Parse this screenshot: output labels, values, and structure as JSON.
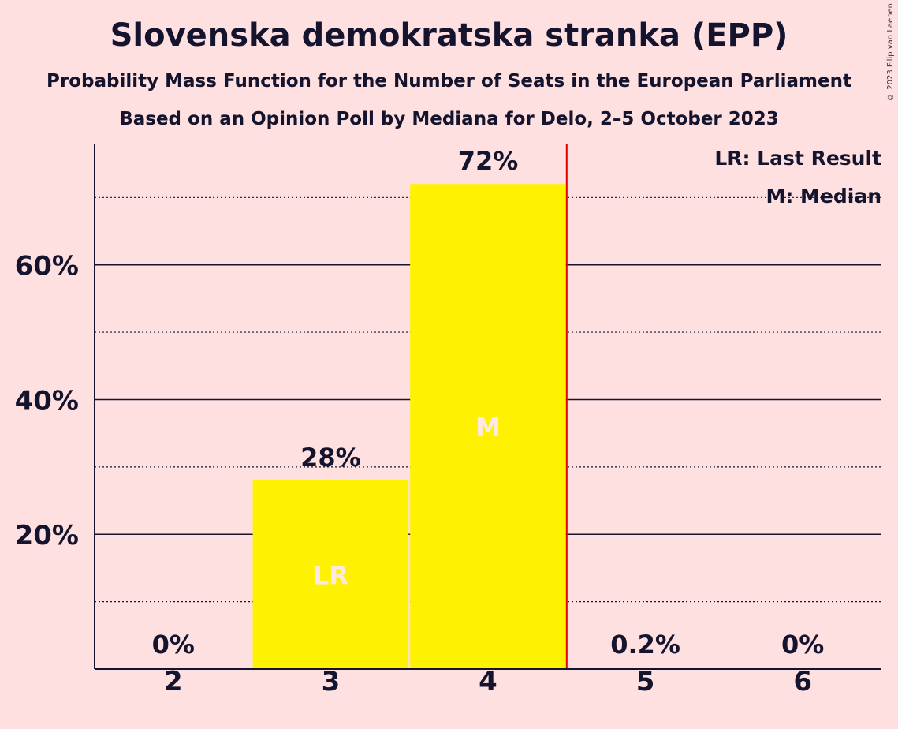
{
  "title": "Slovenska demokratska stranka (EPP)",
  "subtitle": "Probability Mass Function for the Number of Seats in the European Parliament",
  "subtitle2": "Based on an Opinion Poll by Mediana for Delo, 2–5 October 2023",
  "copyright": "© 2023 Filip van Laenen",
  "legend": {
    "lr": "LR: Last Result",
    "m": "M: Median"
  },
  "colors": {
    "bar": "#FFF200",
    "background": "#FFE0E0",
    "last_result_line": "#E00000",
    "text": "#14142E"
  },
  "chart_data": {
    "type": "bar",
    "categories": [
      "2",
      "3",
      "4",
      "5",
      "6"
    ],
    "values": [
      0,
      28,
      72,
      0.2,
      0
    ],
    "value_labels": [
      "0%",
      "28%",
      "72%",
      "0.2%",
      "0%"
    ],
    "bar_marks": [
      "",
      "LR",
      "M",
      "",
      ""
    ],
    "ylim": [
      0,
      78
    ],
    "yticks": [
      20,
      40,
      60
    ],
    "ytick_labels": [
      "20%",
      "40%",
      "60%"
    ],
    "minor_gridlines": [
      10,
      30,
      50,
      70
    ],
    "majority_line_after_category": "4",
    "legend_placement": "top-right"
  }
}
